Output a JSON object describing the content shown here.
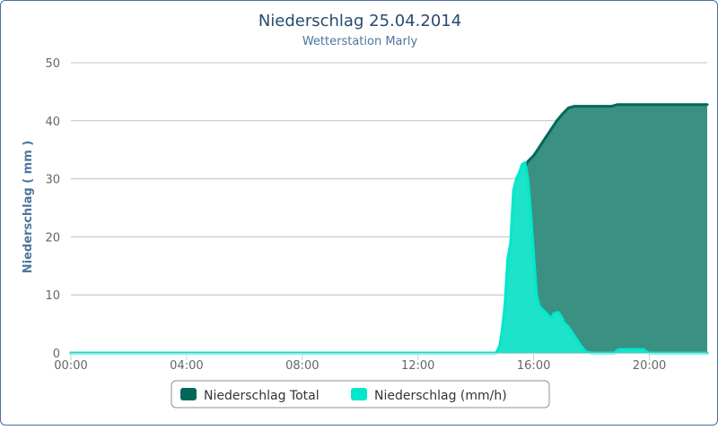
{
  "chart_data": {
    "type": "area",
    "title": "Niederschlag 25.04.2014",
    "subtitle": "Wetterstation Marly",
    "ylabel": "Niederschlag ( mm )",
    "xlabel": "",
    "ylim": [
      0,
      50
    ],
    "yticks": [
      "0",
      "10",
      "20",
      "30",
      "40",
      "50"
    ],
    "xlim": [
      0,
      22
    ],
    "xticks": [
      {
        "value": 0,
        "label": "00:00"
      },
      {
        "value": 4,
        "label": "04:00"
      },
      {
        "value": 8,
        "label": "08:00"
      },
      {
        "value": 12,
        "label": "12:00"
      },
      {
        "value": 16,
        "label": "16:00"
      },
      {
        "value": 20,
        "label": "20:00"
      }
    ],
    "grid": true,
    "legend_position": "bottom-center",
    "series": [
      {
        "name": "Niederschlag Total",
        "color": "#006959",
        "fill": "#3a9182",
        "points": [
          [
            0,
            0
          ],
          [
            14.7,
            0
          ],
          [
            14.8,
            0.5
          ],
          [
            15.0,
            6
          ],
          [
            15.2,
            17
          ],
          [
            15.4,
            28
          ],
          [
            15.6,
            31
          ],
          [
            15.8,
            33
          ],
          [
            16.0,
            34
          ],
          [
            16.2,
            35.5
          ],
          [
            16.4,
            37
          ],
          [
            16.6,
            38.5
          ],
          [
            16.8,
            40
          ],
          [
            17.0,
            41.2
          ],
          [
            17.2,
            42.2
          ],
          [
            17.4,
            42.5
          ],
          [
            18.0,
            42.5
          ],
          [
            18.5,
            42.5
          ],
          [
            18.7,
            42.5
          ],
          [
            18.9,
            42.8
          ],
          [
            20.0,
            42.8
          ],
          [
            22.0,
            42.8
          ]
        ]
      },
      {
        "name": "Niederschlag (mm/h)",
        "color": "#00e8cc",
        "fill": "#1de3c8",
        "points": [
          [
            0,
            0
          ],
          [
            14.7,
            0
          ],
          [
            14.85,
            1.5
          ],
          [
            15.0,
            8
          ],
          [
            15.1,
            16
          ],
          [
            15.2,
            19
          ],
          [
            15.3,
            28
          ],
          [
            15.4,
            30
          ],
          [
            15.5,
            31
          ],
          [
            15.6,
            32.5
          ],
          [
            15.7,
            32.8
          ],
          [
            15.8,
            30
          ],
          [
            15.9,
            24
          ],
          [
            16.0,
            17
          ],
          [
            16.1,
            10
          ],
          [
            16.2,
            8
          ],
          [
            16.35,
            7.3
          ],
          [
            16.5,
            6.5
          ],
          [
            16.6,
            6
          ],
          [
            16.7,
            6.8
          ],
          [
            16.85,
            7
          ],
          [
            16.95,
            6.3
          ],
          [
            17.05,
            5.2
          ],
          [
            17.2,
            4.5
          ],
          [
            17.4,
            3
          ],
          [
            17.6,
            1.5
          ],
          [
            17.8,
            0.2
          ],
          [
            18.0,
            0
          ],
          [
            18.8,
            0
          ],
          [
            18.9,
            0.5
          ],
          [
            19.0,
            0.6
          ],
          [
            19.8,
            0.6
          ],
          [
            19.9,
            0.2
          ],
          [
            20.0,
            0
          ],
          [
            22.0,
            0
          ]
        ]
      }
    ]
  }
}
